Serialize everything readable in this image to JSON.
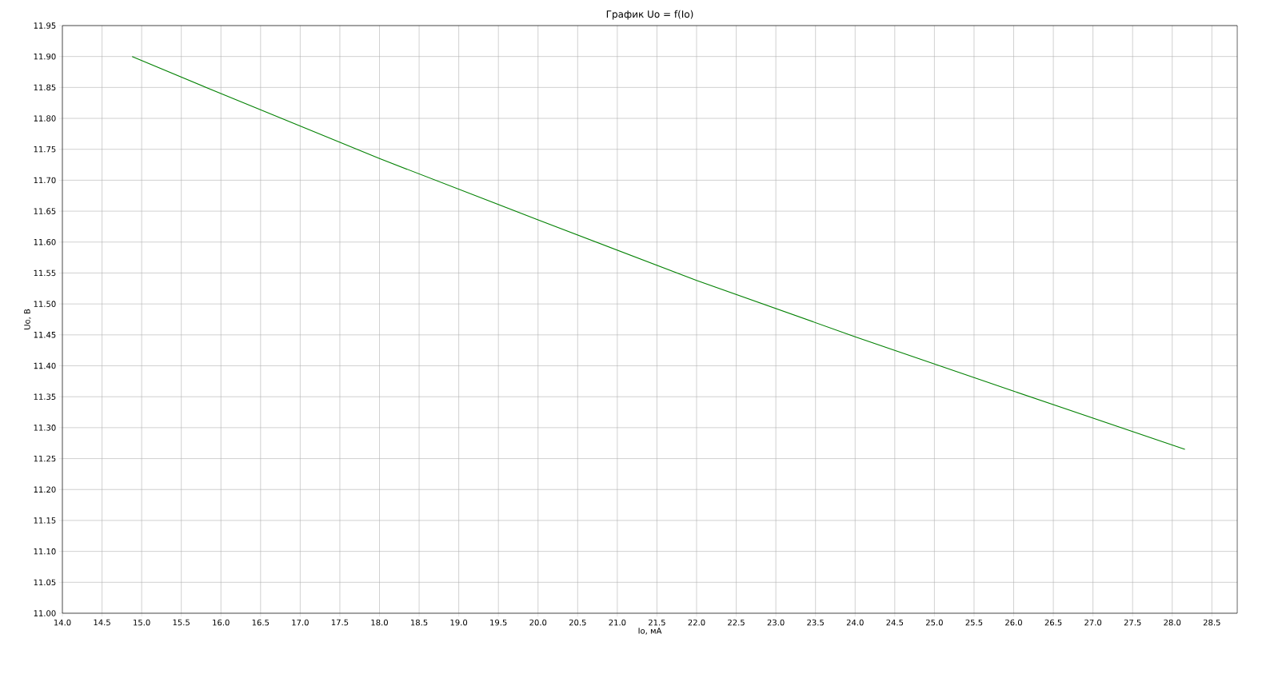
{
  "chart_data": {
    "type": "line",
    "title": "График Uo = f(Io)",
    "xlabel": "Io, мА",
    "ylabel": "Uo, В",
    "xlim": [
      14.0,
      28.82
    ],
    "ylim": [
      11.0,
      11.95
    ],
    "xticks": [
      {
        "value": 14.0,
        "label": "14.0"
      },
      {
        "value": 14.5,
        "label": "14.5"
      },
      {
        "value": 15.0,
        "label": "15.0"
      },
      {
        "value": 15.5,
        "label": "15.5"
      },
      {
        "value": 16.0,
        "label": "16.0"
      },
      {
        "value": 16.5,
        "label": "16.5"
      },
      {
        "value": 17.0,
        "label": "17.0"
      },
      {
        "value": 17.5,
        "label": "17.5"
      },
      {
        "value": 18.0,
        "label": "18.0"
      },
      {
        "value": 18.5,
        "label": "18.5"
      },
      {
        "value": 19.0,
        "label": "19.0"
      },
      {
        "value": 19.5,
        "label": "19.5"
      },
      {
        "value": 20.0,
        "label": "20.0"
      },
      {
        "value": 20.5,
        "label": "20.5"
      },
      {
        "value": 21.0,
        "label": "21.0"
      },
      {
        "value": 21.5,
        "label": "21.5"
      },
      {
        "value": 22.0,
        "label": "22.0"
      },
      {
        "value": 22.5,
        "label": "22.5"
      },
      {
        "value": 23.0,
        "label": "23.0"
      },
      {
        "value": 23.5,
        "label": "23.5"
      },
      {
        "value": 24.0,
        "label": "24.0"
      },
      {
        "value": 24.5,
        "label": "24.5"
      },
      {
        "value": 25.0,
        "label": "25.0"
      },
      {
        "value": 25.5,
        "label": "25.5"
      },
      {
        "value": 26.0,
        "label": "26.0"
      },
      {
        "value": 26.5,
        "label": "26.5"
      },
      {
        "value": 27.0,
        "label": "27.0"
      },
      {
        "value": 27.5,
        "label": "27.5"
      },
      {
        "value": 28.0,
        "label": "28.0"
      },
      {
        "value": 28.5,
        "label": "28.5"
      }
    ],
    "yticks": [
      {
        "value": 11.0,
        "label": "11.00"
      },
      {
        "value": 11.05,
        "label": "11.05"
      },
      {
        "value": 11.1,
        "label": "11.10"
      },
      {
        "value": 11.15,
        "label": "11.15"
      },
      {
        "value": 11.2,
        "label": "11.20"
      },
      {
        "value": 11.25,
        "label": "11.25"
      },
      {
        "value": 11.3,
        "label": "11.30"
      },
      {
        "value": 11.35,
        "label": "11.35"
      },
      {
        "value": 11.4,
        "label": "11.40"
      },
      {
        "value": 11.45,
        "label": "11.45"
      },
      {
        "value": 11.5,
        "label": "11.50"
      },
      {
        "value": 11.55,
        "label": "11.55"
      },
      {
        "value": 11.6,
        "label": "11.60"
      },
      {
        "value": 11.65,
        "label": "11.65"
      },
      {
        "value": 11.7,
        "label": "11.70"
      },
      {
        "value": 11.75,
        "label": "11.75"
      },
      {
        "value": 11.8,
        "label": "11.80"
      },
      {
        "value": 11.85,
        "label": "11.85"
      },
      {
        "value": 11.9,
        "label": "11.90"
      },
      {
        "value": 11.95,
        "label": "11.95"
      }
    ],
    "grid": true,
    "series": [
      {
        "color": "#008000",
        "x": [
          14.88,
          16.0,
          18.0,
          20.0,
          22.0,
          24.0,
          26.0,
          28.16
        ],
        "values": [
          11.9,
          11.84,
          11.735,
          11.636,
          11.538,
          11.447,
          11.359,
          11.265
        ]
      }
    ]
  }
}
